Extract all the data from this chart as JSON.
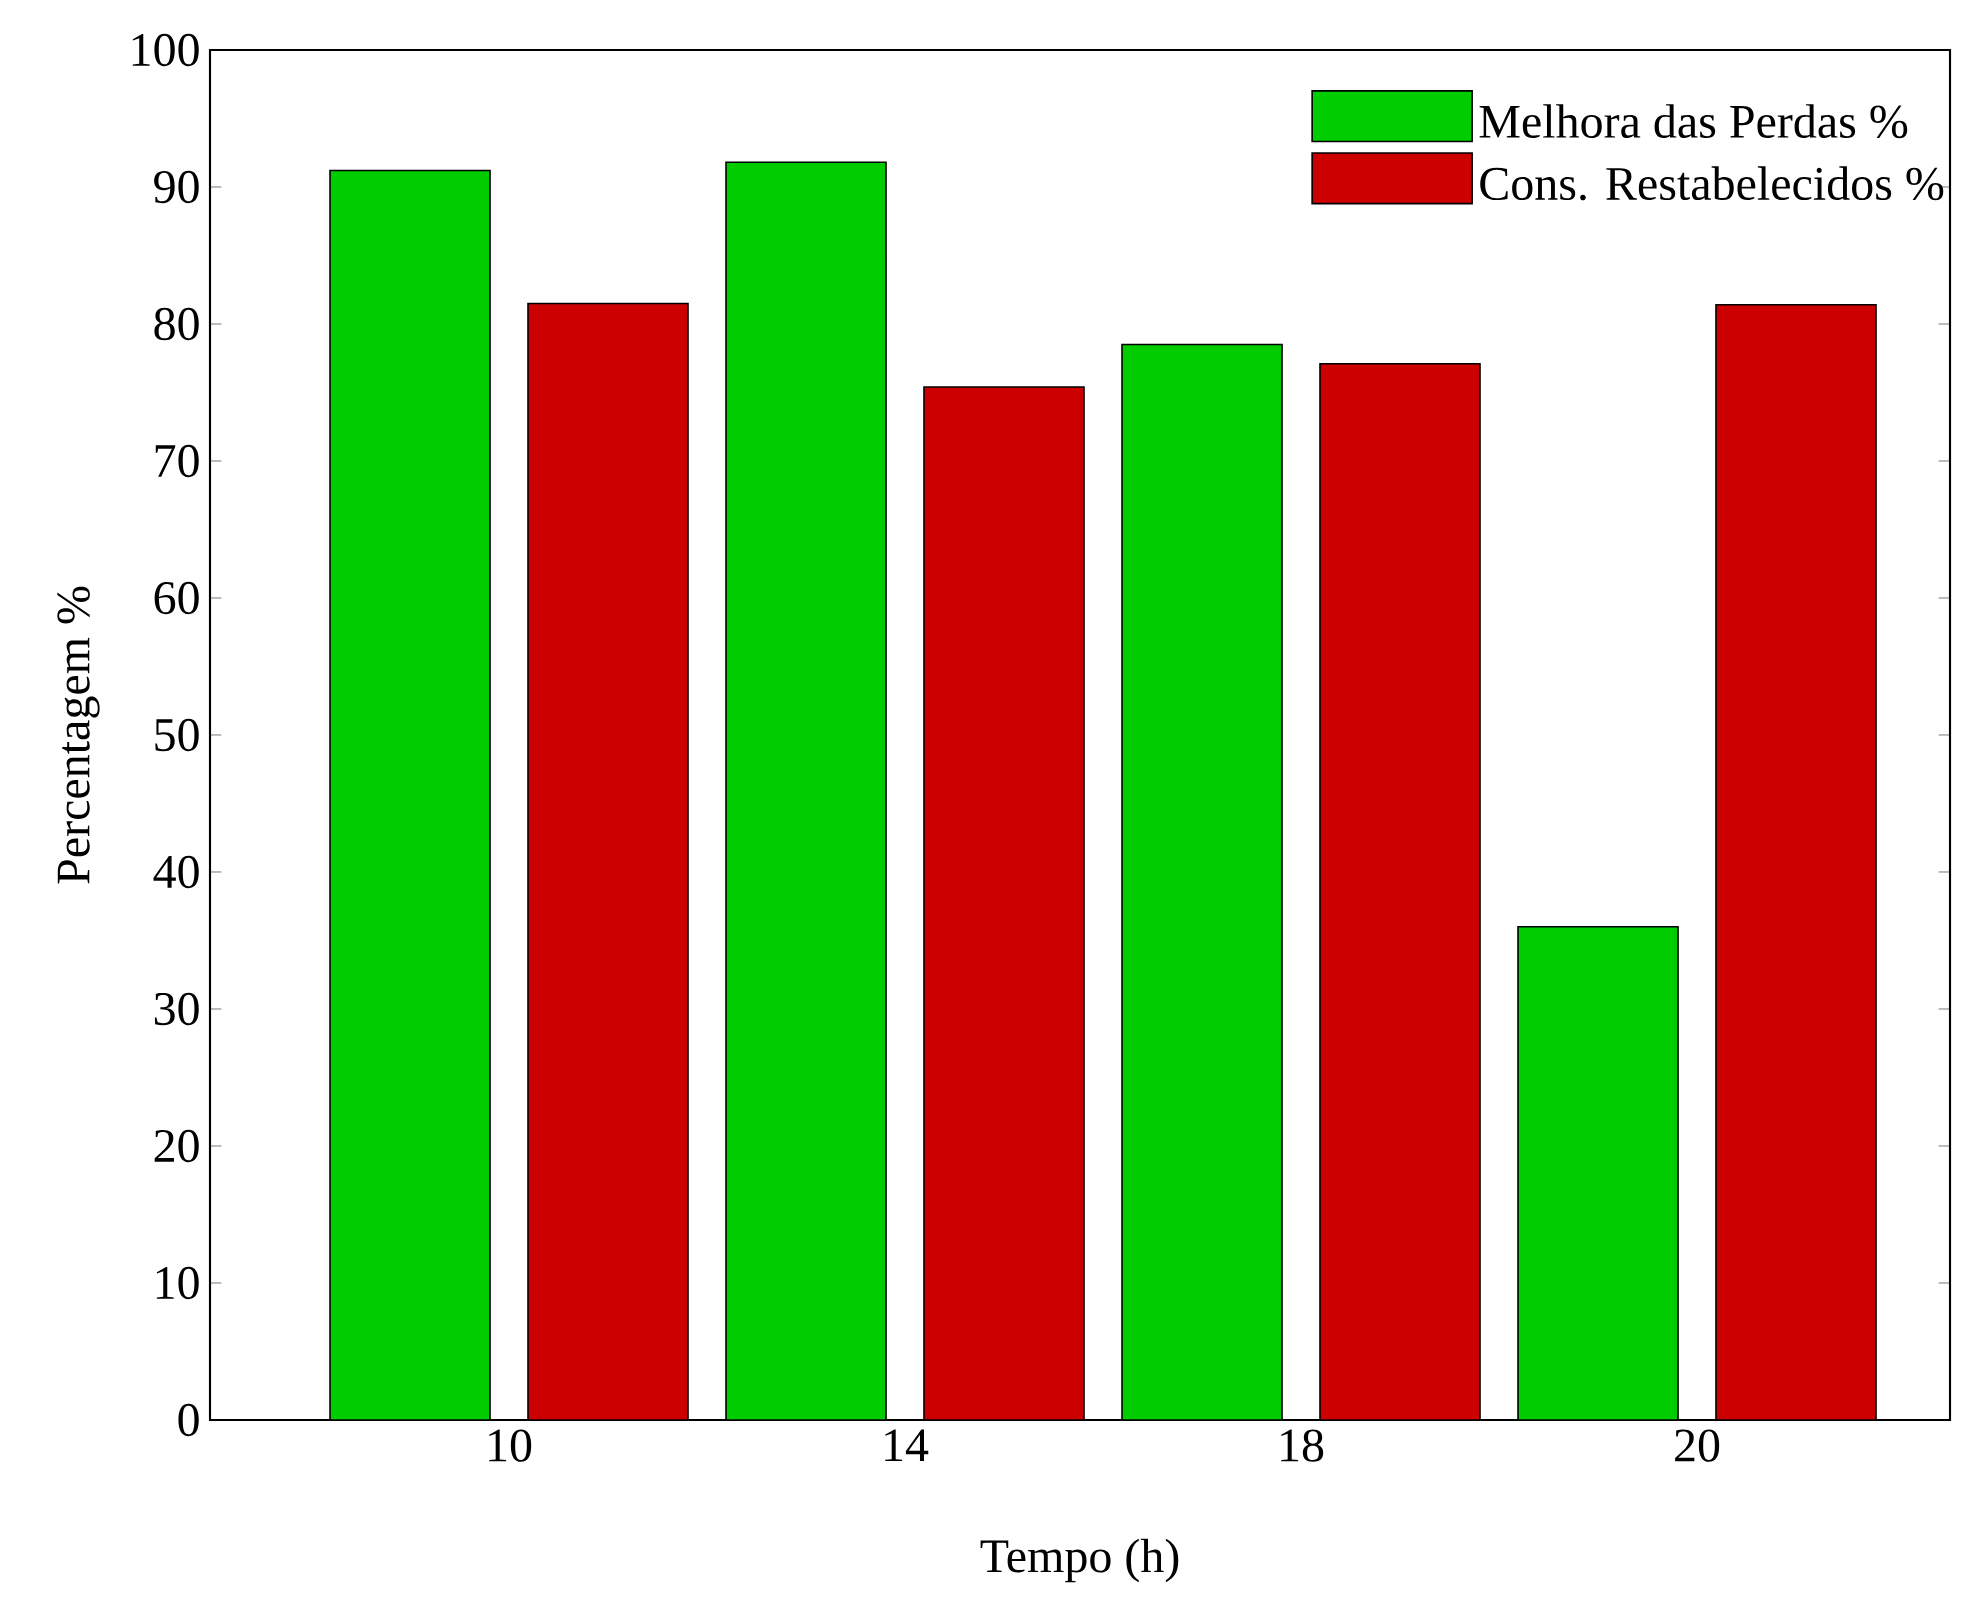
{
  "chart_data": {
    "type": "bar",
    "xlabel": "Tempo (h)",
    "ylabel": "Percentagem %",
    "categories": [
      "10",
      "14",
      "18",
      "20"
    ],
    "series": [
      {
        "name": "Melhora das Perdas %",
        "color": "#00cc00",
        "values": [
          91.2,
          91.8,
          78.5,
          36
        ]
      },
      {
        "name": "Cons. Restabelecidos %",
        "color": "#cc0000",
        "values": [
          81.5,
          75.4,
          77.1,
          81.4
        ]
      }
    ],
    "ylim": [
      0,
      100
    ],
    "yticks": [
      0,
      10,
      20,
      30,
      40,
      50,
      60,
      70,
      80,
      90,
      100
    ],
    "grid": false,
    "legend": "top right"
  }
}
